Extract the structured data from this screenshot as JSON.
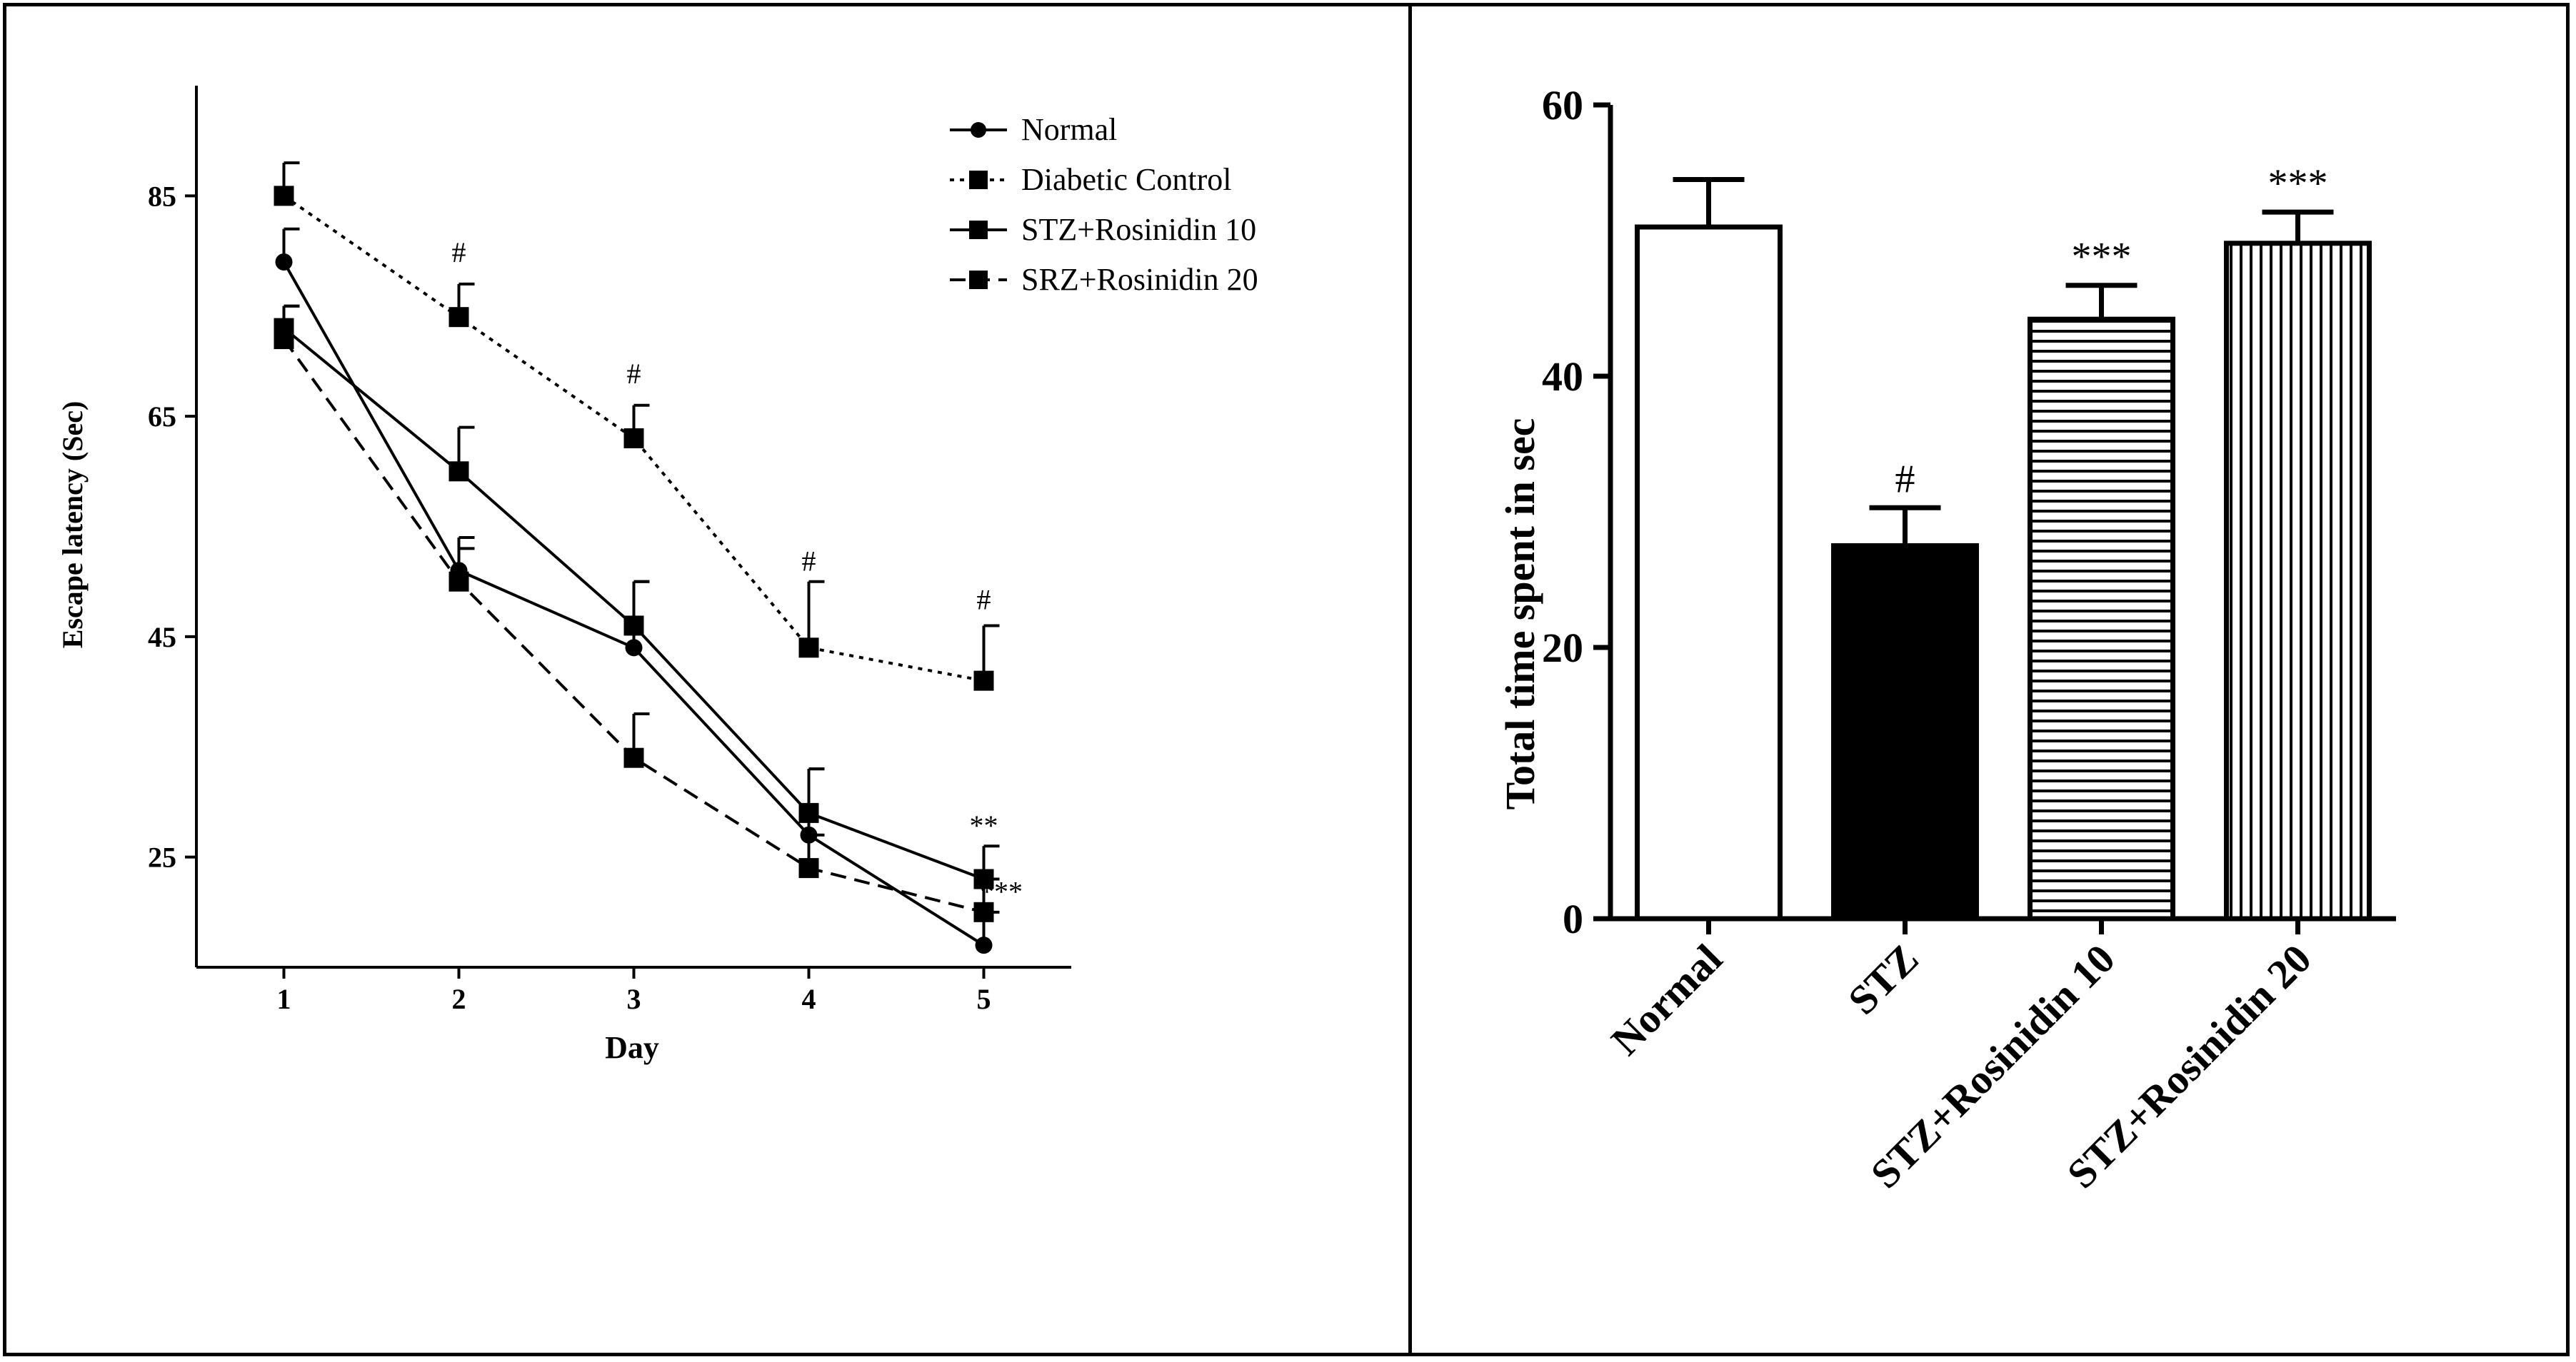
{
  "chart_data": [
    {
      "type": "line",
      "title": "",
      "xlabel": "Day",
      "ylabel": "Escape latency (Sec)",
      "x": [
        1,
        2,
        3,
        4,
        5
      ],
      "x_ticks": [
        "1",
        "2",
        "3",
        "4",
        "5"
      ],
      "y_ticks": [
        "25",
        "45",
        "65",
        "85"
      ],
      "xlim": [
        0.5,
        5.5
      ],
      "ylim": [
        15,
        95
      ],
      "grid": false,
      "legend_position": "top-right",
      "series": [
        {
          "name": "Normal",
          "values": [
            79,
            51,
            44,
            27,
            17
          ],
          "errors": [
            3,
            3,
            6,
            6,
            3
          ],
          "marker": "circle",
          "dash": "solid"
        },
        {
          "name": "Diabetic Control",
          "values": [
            85,
            74,
            63,
            44,
            41
          ],
          "errors": [
            3,
            3,
            3,
            6,
            5
          ],
          "marker": "square",
          "dash": "dotted"
        },
        {
          "name": "STZ+Rosinidin 10",
          "values": [
            73,
            60,
            46,
            29,
            23
          ],
          "errors": [
            2,
            4,
            4,
            4,
            3
          ],
          "marker": "square",
          "dash": "solid"
        },
        {
          "name": "SRZ+Rosinidin 20",
          "values": [
            72,
            50,
            34,
            24,
            20
          ],
          "errors": [
            3,
            3,
            4,
            3,
            3
          ],
          "marker": "square",
          "dash": "dashed"
        }
      ],
      "annotations": [
        {
          "text": "#",
          "x": 2,
          "y": 79
        },
        {
          "text": "#",
          "x": 3,
          "y": 68
        },
        {
          "text": "#",
          "x": 4,
          "y": 51
        },
        {
          "text": "#",
          "x": 5,
          "y": 47.5
        },
        {
          "text": "**",
          "x": 5,
          "y": 27
        },
        {
          "text": "***",
          "x": 5.1,
          "y": 21
        }
      ]
    },
    {
      "type": "bar",
      "title": "",
      "xlabel": "",
      "ylabel": "Total time spent in sec",
      "categories": [
        "Normal",
        "STZ",
        "STZ+Rosinidin 10",
        "STZ+Rosinidin 20"
      ],
      "values": [
        51,
        27.5,
        44.2,
        49.8
      ],
      "errors": [
        3.5,
        2.8,
        2.5,
        2.3
      ],
      "annotations": [
        "",
        "#",
        "***",
        "***"
      ],
      "fills": [
        "white",
        "black",
        "horizontal-stripes",
        "vertical-stripes"
      ],
      "y_ticks": [
        "0",
        "20",
        "40",
        "60"
      ],
      "ylim": [
        0,
        60
      ],
      "grid": false
    }
  ]
}
